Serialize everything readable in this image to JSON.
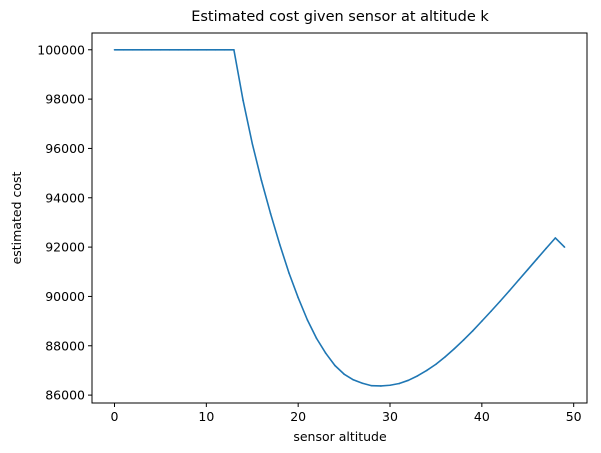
{
  "chart_data": {
    "type": "line",
    "title": "Estimated cost given sensor at altitude k",
    "xlabel": "sensor altitude",
    "ylabel": "estimated cost",
    "xlim": [
      -2.45,
      51.45
    ],
    "ylim": [
      85680,
      100680
    ],
    "xticks": [
      0,
      10,
      20,
      30,
      40,
      50
    ],
    "yticks": [
      86000,
      88000,
      90000,
      92000,
      94000,
      96000,
      98000,
      100000
    ],
    "xtick_labels": [
      "0",
      "10",
      "20",
      "30",
      "40",
      "50"
    ],
    "ytick_labels": [
      "86000",
      "88000",
      "90000",
      "92000",
      "94000",
      "96000",
      "98000",
      "100000"
    ],
    "grid": false,
    "colors": {
      "series": "#1f77b4"
    },
    "series": [
      {
        "x": [
          0,
          1,
          2,
          3,
          4,
          5,
          6,
          7,
          8,
          9,
          10,
          11,
          12,
          13,
          14,
          15,
          16,
          17,
          18,
          19,
          20,
          21,
          22,
          23,
          24,
          25,
          26,
          27,
          28,
          29,
          30,
          31,
          32,
          33,
          34,
          35,
          36,
          37,
          38,
          39,
          40,
          41,
          42,
          43,
          44,
          45,
          46,
          47,
          48,
          49
        ],
        "values": [
          100000,
          100000,
          100000,
          100000,
          100000,
          100000,
          100000,
          100000,
          100000,
          100000,
          100000,
          100000,
          100000,
          100000,
          97950,
          96200,
          94700,
          93350,
          92100,
          90950,
          89950,
          89050,
          88300,
          87700,
          87200,
          86850,
          86620,
          86480,
          86380,
          86370,
          86400,
          86470,
          86600,
          86780,
          87000,
          87250,
          87550,
          87880,
          88230,
          88600,
          89000,
          89400,
          89810,
          90230,
          90660,
          91090,
          91520,
          91950,
          92370,
          92000
        ]
      }
    ]
  }
}
